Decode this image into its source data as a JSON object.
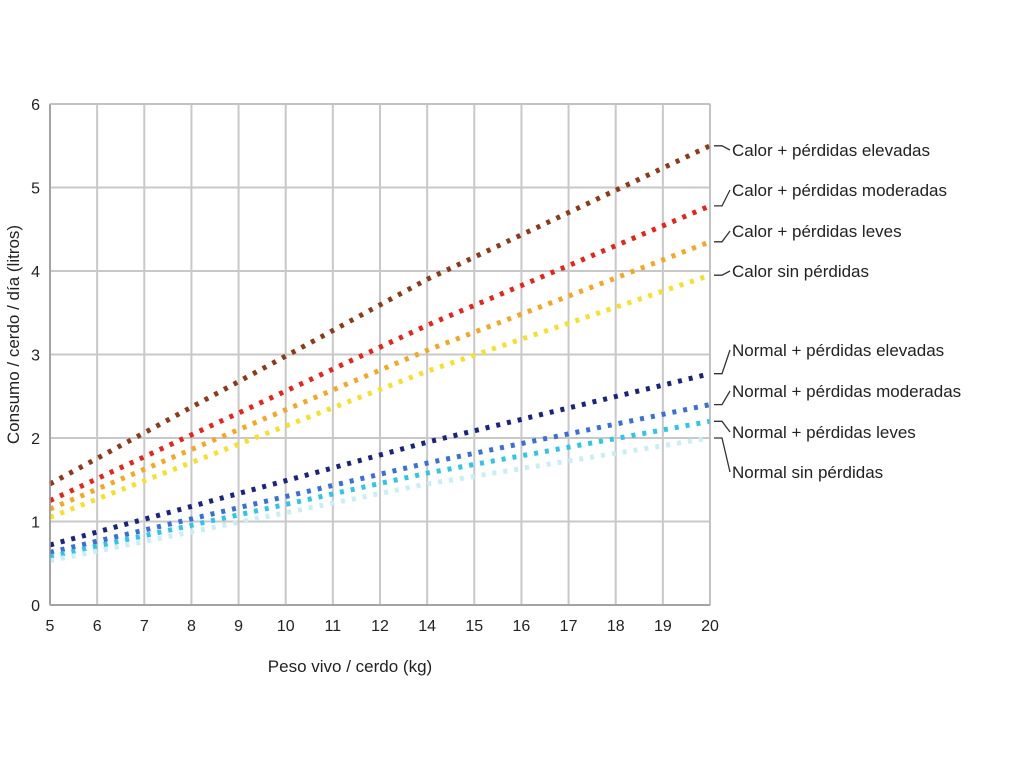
{
  "chart_data": {
    "type": "line",
    "xlabel": "Peso vivo / cerdo (kg)",
    "ylabel": "Consumo / cerdo / día (litros)",
    "x_ticks": [
      5,
      6,
      7,
      8,
      9,
      10,
      11,
      12,
      14,
      15,
      16,
      17,
      18,
      19,
      20
    ],
    "y_ticks": [
      0,
      1,
      2,
      3,
      4,
      5,
      6
    ],
    "ylim": [
      0,
      6
    ],
    "grid": true,
    "line_style": "dotted",
    "legend_placement": "right",
    "series": [
      {
        "name": "Calor + pérdidas elevadas",
        "color": "#8b3a1a",
        "start": 1.45,
        "end": 5.5,
        "knee": 3.9
      },
      {
        "name": "Calor + pérdidas moderadas",
        "color": "#e8231a",
        "start": 1.25,
        "end": 4.78,
        "knee": 3.35
      },
      {
        "name": "Calor + pérdidas leves",
        "color": "#f5a623",
        "start": 1.15,
        "end": 4.35,
        "knee": 3.05
      },
      {
        "name": "Calor sin pérdidas",
        "color": "#f5e02a",
        "start": 1.05,
        "end": 3.95,
        "knee": 2.8
      },
      {
        "name": "Normal + pérdidas elevadas",
        "color": "#1a237e",
        "start": 0.72,
        "end": 2.77,
        "knee": 1.95
      },
      {
        "name": "Normal + pérdidas moderadas",
        "color": "#3a6fd8",
        "start": 0.63,
        "end": 2.4,
        "knee": 1.7
      },
      {
        "name": "Normal + pérdidas leves",
        "color": "#30c5e8",
        "start": 0.58,
        "end": 2.2,
        "knee": 1.58
      },
      {
        "name": "Normal sin pérdidas",
        "color": "#c9eef5",
        "start": 0.53,
        "end": 2.0,
        "knee": 1.45
      }
    ]
  }
}
